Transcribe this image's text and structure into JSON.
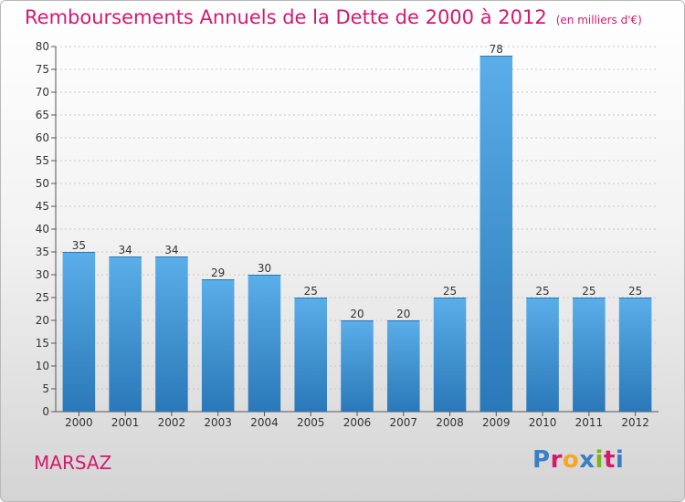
{
  "header": {
    "title": "Remboursements Annuels de la Dette de 2000 à 2012",
    "unit_note": "(en milliers d'€)"
  },
  "footer": {
    "place_name": "MARSAZ",
    "logo_text": "Proxiti",
    "logo_colors": [
      "#3a7fc4",
      "#d6196e",
      "#f5a623",
      "#3a7fc4",
      "#7ab51d",
      "#d6196e",
      "#3a7fc4"
    ]
  },
  "chart_data": {
    "type": "bar",
    "categories": [
      "2000",
      "2001",
      "2002",
      "2003",
      "2004",
      "2005",
      "2006",
      "2007",
      "2008",
      "2009",
      "2010",
      "2011",
      "2012"
    ],
    "values": [
      35,
      34,
      34,
      29,
      30,
      25,
      20,
      20,
      25,
      78,
      25,
      25,
      25
    ],
    "title": "Remboursements Annuels de la Dette de 2000 à 2012",
    "xlabel": "",
    "ylabel": "",
    "ylim": [
      0,
      80
    ],
    "ytick_step": 5,
    "grid": "horizontal dotted",
    "bar_color_top": "#5aaee9",
    "bar_color_bottom": "#2a78b8",
    "data_labels": true
  }
}
